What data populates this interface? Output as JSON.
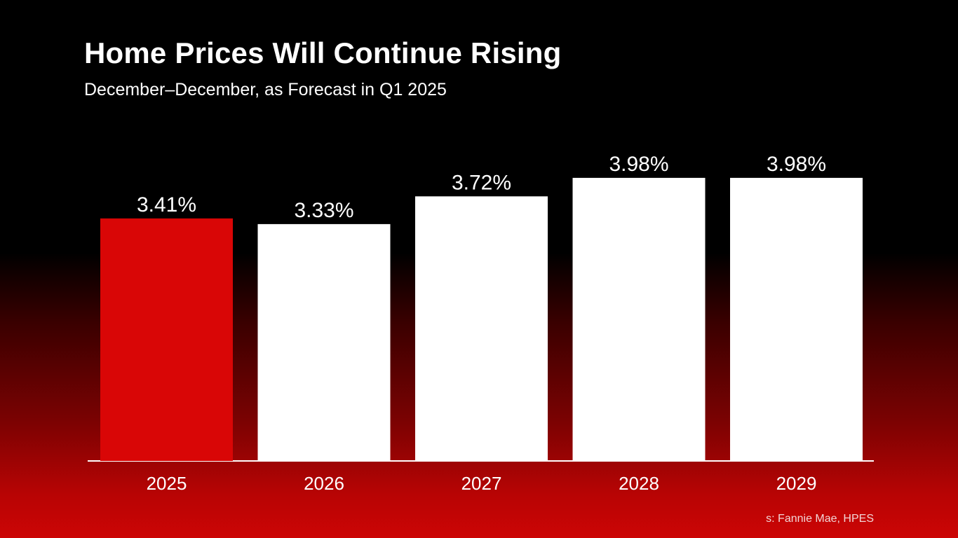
{
  "title": "Home Prices Will Continue Rising",
  "subtitle": "December–December, as Forecast in Q1 2025",
  "source": "s: Fannie Mae, HPES",
  "colors": {
    "highlight": "#d90606",
    "bar": "#ffffff",
    "axis": "#ffffff",
    "text": "#ffffff"
  },
  "chart_data": {
    "type": "bar",
    "title": "Home Prices Will Continue Rising",
    "subtitle": "December–December, as Forecast in Q1 2025",
    "categories": [
      "2025",
      "2026",
      "2027",
      "2028",
      "2029"
    ],
    "values": [
      3.41,
      3.33,
      3.72,
      3.98,
      3.98
    ],
    "labels": [
      "3.41%",
      "3.33%",
      "3.72%",
      "3.98%",
      "3.98%"
    ],
    "highlight_index": 0,
    "xlabel": "",
    "ylabel": "",
    "ylim": [
      0,
      4.6
    ],
    "grid": false,
    "legend": "none"
  }
}
